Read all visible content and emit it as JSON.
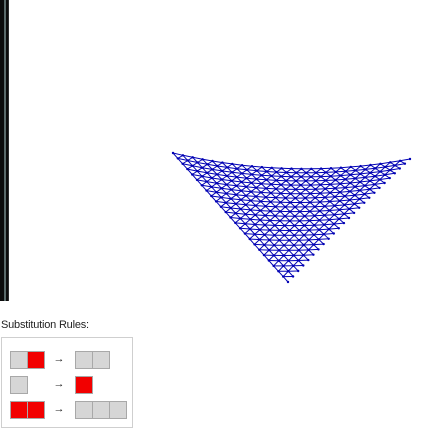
{
  "rules_label": "Substitution Rules:",
  "rules": [
    {
      "lhs": [
        "gray",
        "red"
      ],
      "arrow": "→",
      "rhs": [
        "gray",
        "gray"
      ]
    },
    {
      "lhs": [
        "gray"
      ],
      "arrow": "→",
      "rhs": [
        "red"
      ]
    },
    {
      "lhs": [
        "red",
        "red"
      ],
      "arrow": "→",
      "rhs": [
        "gray",
        "gray",
        "gray"
      ]
    }
  ],
  "colors": {
    "gray": "#d6d6d6",
    "red": "#f20000",
    "mesh": "#0000b4"
  }
}
